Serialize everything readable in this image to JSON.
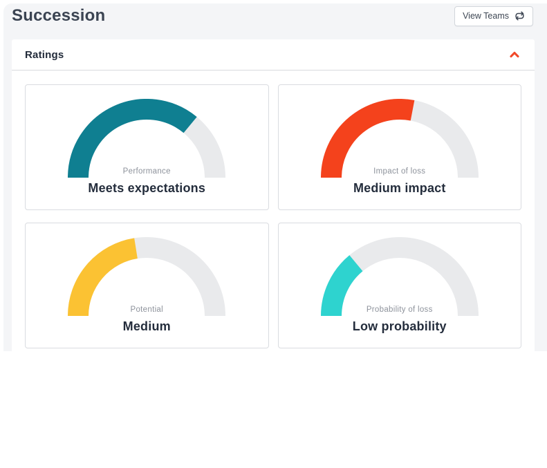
{
  "page": {
    "title": "Succession"
  },
  "toolbar": {
    "view_teams_label": "View Teams",
    "view_teams_icon": "repeat-icon",
    "icon_color": "#3d4653"
  },
  "ratings_panel": {
    "title": "Ratings",
    "collapse_icon": "chevron-up-icon",
    "accent_color": "#f1492a"
  },
  "chart_data": [
    {
      "type": "gauge",
      "label": "Performance",
      "value_text": "Meets expectations",
      "percent": 72,
      "color": "#0f7f91",
      "track_color": "#e9eaec"
    },
    {
      "type": "gauge",
      "label": "Impact of loss",
      "value_text": "Medium impact",
      "percent": 56,
      "color": "#f4421c",
      "track_color": "#e9eaec"
    },
    {
      "type": "gauge",
      "label": "Potential",
      "value_text": "Medium",
      "percent": 45,
      "color": "#fbc233",
      "track_color": "#e9eaec"
    },
    {
      "type": "gauge",
      "label": "Probability of loss",
      "value_text": "Low probability",
      "percent": 28,
      "color": "#2ed3cf",
      "track_color": "#e9eaec"
    }
  ]
}
